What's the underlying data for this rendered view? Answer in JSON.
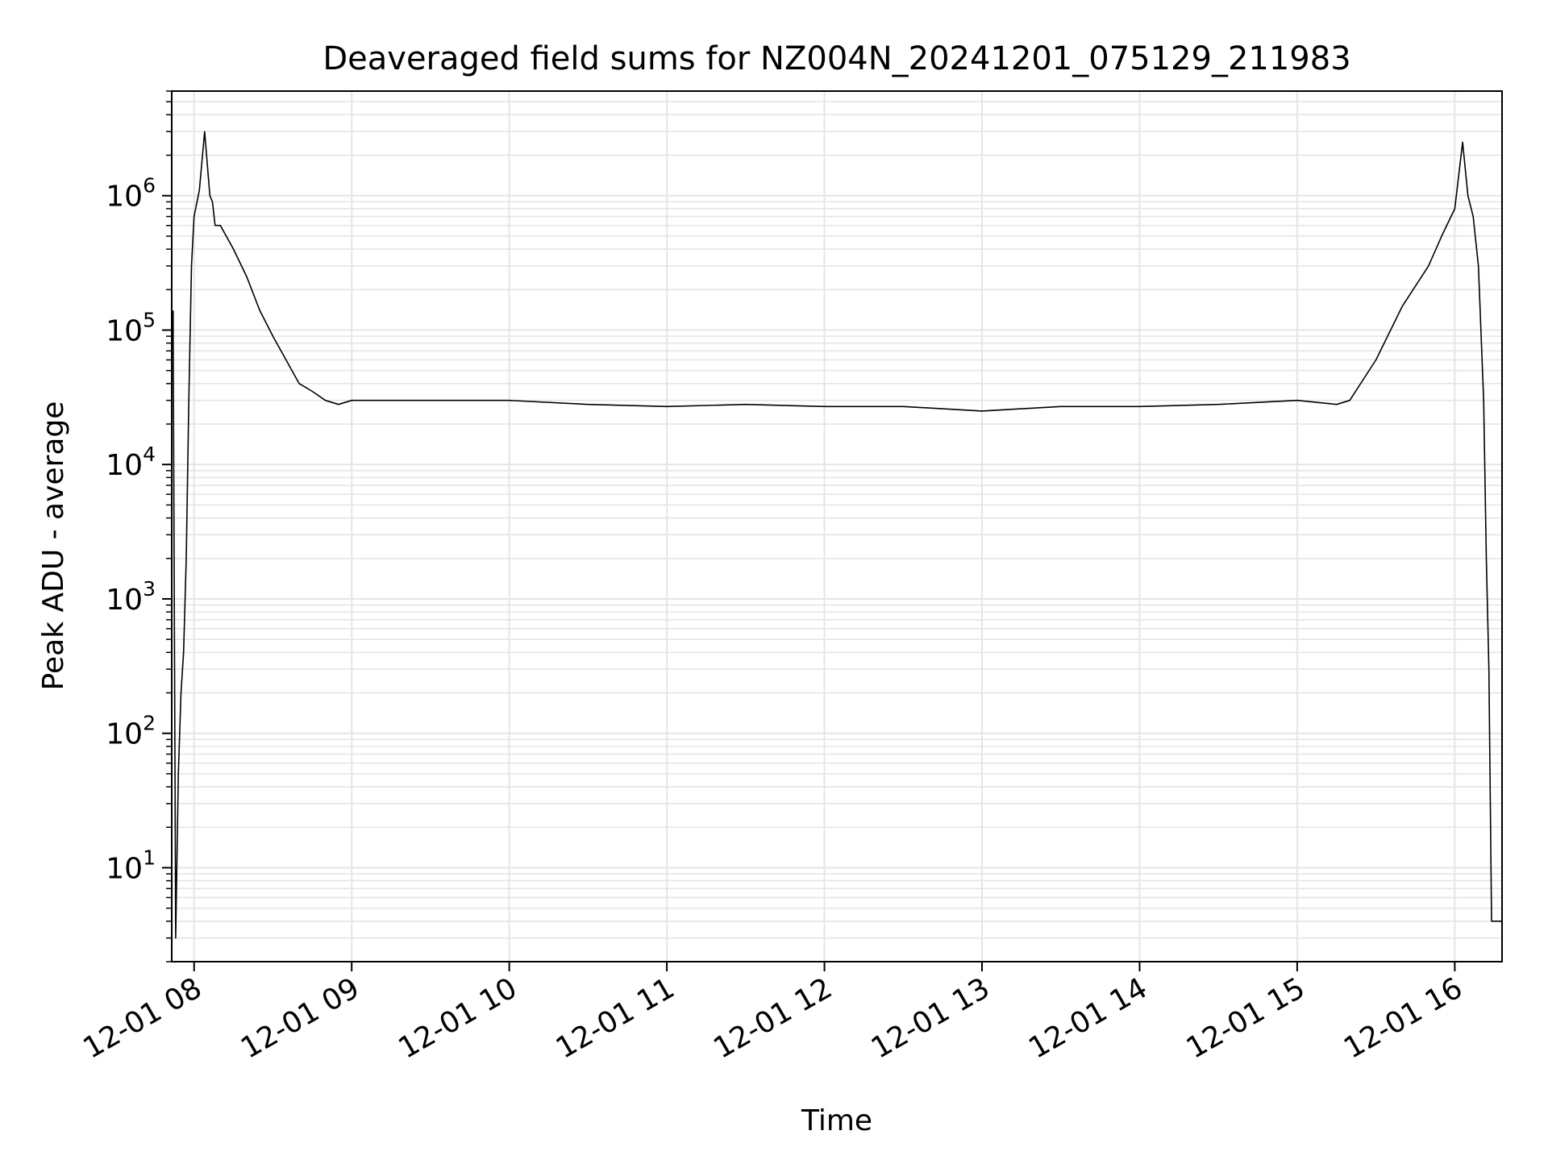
{
  "chart_data": {
    "type": "line",
    "title": "Deaveraged field sums for NZ004N_20241201_075129_211983",
    "xlabel": "Time",
    "ylabel": "Peak ADU - average",
    "y_scale": "log",
    "ylim": [
      2,
      6000000
    ],
    "xlim": [
      "2024-12-01T07:51:29",
      "2024-12-01T16:18:00"
    ],
    "grid": true,
    "line_color": "#000000",
    "grid_color": "#e5e5e5",
    "x_ticks": [
      {
        "x": "2024-12-01T08:00",
        "label": "12-01 08"
      },
      {
        "x": "2024-12-01T09:00",
        "label": "12-01 09"
      },
      {
        "x": "2024-12-01T10:00",
        "label": "12-01 10"
      },
      {
        "x": "2024-12-01T11:00",
        "label": "12-01 11"
      },
      {
        "x": "2024-12-01T12:00",
        "label": "12-01 12"
      },
      {
        "x": "2024-12-01T13:00",
        "label": "12-01 13"
      },
      {
        "x": "2024-12-01T14:00",
        "label": "12-01 14"
      },
      {
        "x": "2024-12-01T15:00",
        "label": "12-01 15"
      },
      {
        "x": "2024-12-01T16:00",
        "label": "12-01 16"
      }
    ],
    "y_ticks": [
      {
        "value": 10,
        "base": "10",
        "exp": "1"
      },
      {
        "value": 100,
        "base": "10",
        "exp": "2"
      },
      {
        "value": 1000,
        "base": "10",
        "exp": "3"
      },
      {
        "value": 10000,
        "base": "10",
        "exp": "4"
      },
      {
        "value": 100000,
        "base": "10",
        "exp": "5"
      },
      {
        "value": 1000000,
        "base": "10",
        "exp": "6"
      }
    ],
    "series": [
      {
        "x": [
          "2024-12-01T07:52",
          "2024-12-01T07:53",
          "2024-12-01T07:54",
          "2024-12-01T07:55",
          "2024-12-01T07:56",
          "2024-12-01T07:57",
          "2024-12-01T07:58",
          "2024-12-01T07:59",
          "2024-12-01T08:00",
          "2024-12-01T08:02",
          "2024-12-01T08:04",
          "2024-12-01T08:06",
          "2024-12-01T08:07",
          "2024-12-01T08:08",
          "2024-12-01T08:10",
          "2024-12-01T08:15",
          "2024-12-01T08:20",
          "2024-12-01T08:25",
          "2024-12-01T08:30",
          "2024-12-01T08:35",
          "2024-12-01T08:40",
          "2024-12-01T08:45",
          "2024-12-01T08:50",
          "2024-12-01T08:55",
          "2024-12-01T09:00",
          "2024-12-01T09:30",
          "2024-12-01T10:00",
          "2024-12-01T10:30",
          "2024-12-01T11:00",
          "2024-12-01T11:30",
          "2024-12-01T12:00",
          "2024-12-01T12:30",
          "2024-12-01T13:00",
          "2024-12-01T13:30",
          "2024-12-01T14:00",
          "2024-12-01T14:30",
          "2024-12-01T15:00",
          "2024-12-01T15:15",
          "2024-12-01T15:20",
          "2024-12-01T15:30",
          "2024-12-01T15:40",
          "2024-12-01T15:50",
          "2024-12-01T15:55",
          "2024-12-01T16:00",
          "2024-12-01T16:03",
          "2024-12-01T16:05",
          "2024-12-01T16:07",
          "2024-12-01T16:09",
          "2024-12-01T16:11",
          "2024-12-01T16:12",
          "2024-12-01T16:13",
          "2024-12-01T16:14",
          "2024-12-01T16:16",
          "2024-12-01T16:18"
        ],
        "values": [
          140000,
          3,
          50,
          200,
          400,
          2000,
          30000,
          300000,
          700000,
          1100000,
          3000000,
          1000000,
          900000,
          600000,
          600000,
          400000,
          250000,
          140000,
          90000,
          60000,
          40000,
          35000,
          30000,
          28000,
          30000,
          30000,
          30000,
          28000,
          27000,
          28000,
          27000,
          27000,
          25000,
          27000,
          27000,
          28000,
          30000,
          28000,
          30000,
          60000,
          150000,
          300000,
          500000,
          800000,
          2500000,
          1000000,
          700000,
          300000,
          30000,
          2000,
          300,
          4,
          4,
          4
        ]
      }
    ]
  }
}
